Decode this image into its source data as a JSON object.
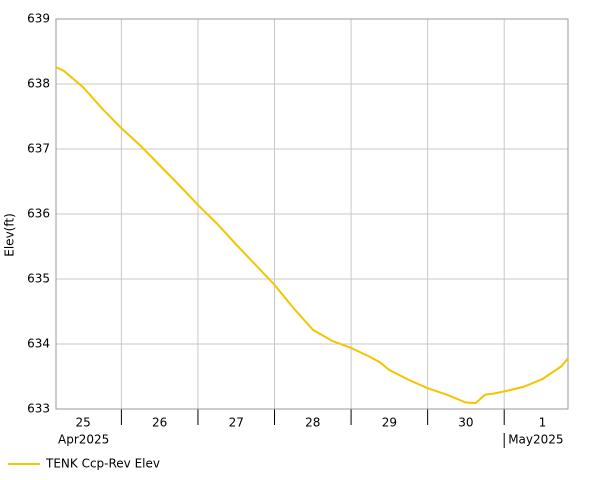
{
  "chart_data": {
    "type": "line",
    "y_label": "Elev(ft)",
    "x": [
      "2025-04-25T03:30",
      "2025-04-25T06:00",
      "2025-04-25T12:00",
      "2025-04-25T18:00",
      "2025-04-26T00:00",
      "2025-04-26T06:00",
      "2025-04-26T12:00",
      "2025-04-26T18:00",
      "2025-04-27T00:00",
      "2025-04-27T06:00",
      "2025-04-27T12:00",
      "2025-04-27T18:00",
      "2025-04-28T00:00",
      "2025-04-28T06:00",
      "2025-04-28T12:00",
      "2025-04-28T18:00",
      "2025-04-29T00:00",
      "2025-04-29T06:00",
      "2025-04-29T09:00",
      "2025-04-29T12:00",
      "2025-04-29T18:00",
      "2025-04-30T00:00",
      "2025-04-30T06:00",
      "2025-04-30T12:00",
      "2025-04-30T15:00",
      "2025-04-30T18:00",
      "2025-04-30T21:00",
      "2025-05-01T00:00",
      "2025-05-01T06:00",
      "2025-05-01T12:00",
      "2025-05-01T18:00",
      "2025-05-01T20:00"
    ],
    "series": [
      {
        "name": "TENK Ccp-Rev Elev",
        "color": "#f5c400",
        "values": [
          638.26,
          638.2,
          637.95,
          637.62,
          637.32,
          637.05,
          636.75,
          636.45,
          636.14,
          635.85,
          635.53,
          635.22,
          634.91,
          634.55,
          634.22,
          634.05,
          633.94,
          633.8,
          633.72,
          633.6,
          633.45,
          633.32,
          633.22,
          633.1,
          633.09,
          633.22,
          633.24,
          633.27,
          633.34,
          633.46,
          633.66,
          633.78
        ]
      }
    ],
    "xlim": [
      "2025-04-25T03:30",
      "2025-05-01T20:00"
    ],
    "xgrid": [
      "2025-04-26T00:00",
      "2025-04-27T00:00",
      "2025-04-28T00:00",
      "2025-04-29T00:00",
      "2025-04-30T00:00",
      "2025-05-01T00:00"
    ],
    "xticks": [
      {
        "value": "2025-04-25T12:00",
        "label": "25"
      },
      {
        "value": "2025-04-26T12:00",
        "label": "26"
      },
      {
        "value": "2025-04-27T12:00",
        "label": "27"
      },
      {
        "value": "2025-04-28T12:00",
        "label": "28"
      },
      {
        "value": "2025-04-29T12:00",
        "label": "29"
      },
      {
        "value": "2025-04-30T12:00",
        "label": "30"
      },
      {
        "value": "2025-05-01T12:00",
        "label": "1"
      }
    ],
    "month_labels": [
      {
        "value": "2025-04-25T00:00",
        "label": "Apr2025"
      },
      {
        "value": "2025-05-01T00:00",
        "label": "May2025"
      }
    ],
    "ylim": [
      633,
      639
    ],
    "yticks": [
      633,
      634,
      635,
      636,
      637,
      638,
      639
    ],
    "grid": true,
    "legend": "bottom-left"
  }
}
